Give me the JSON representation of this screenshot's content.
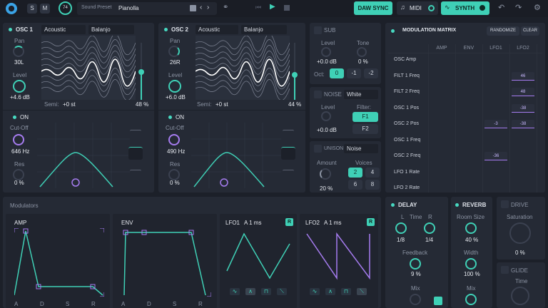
{
  "topbar": {
    "s_label": "S",
    "m_label": "M",
    "volume_value": "74",
    "preset_label": "Sound Preset",
    "preset_name": "Pianolla",
    "daw_sync": "DAW SYNC",
    "midi": "MIDI",
    "synth": "SYNTH"
  },
  "osc1": {
    "title": "OSC 1",
    "type": "Acoustic",
    "instrument": "Balanjo",
    "pan_label": "Pan",
    "pan_value": "30L",
    "level_label": "Level",
    "level_value": "+4.6 dB",
    "semi_label": "Semi:",
    "semi_value": "+0 st",
    "percent": "48 %",
    "filter_on": "ON",
    "cutoff_label": "Cut-Off",
    "cutoff_value": "646 Hz",
    "res_label": "Res",
    "res_value": "0 %"
  },
  "osc2": {
    "title": "OSC 2",
    "type": "Acoustic",
    "instrument": "Balanjo",
    "pan_label": "Pan",
    "pan_value": "26R",
    "level_label": "Level",
    "level_value": "+6.0 dB",
    "semi_label": "Semi:",
    "semi_value": "+0 st",
    "percent": "44 %",
    "filter_on": "ON",
    "cutoff_label": "Cut-Off",
    "cutoff_value": "490 Hz",
    "res_label": "Res",
    "res_value": "0 %"
  },
  "sub": {
    "title": "SUB",
    "level_label": "Level",
    "level_value": "+0.0 dB",
    "tone_label": "Tone",
    "tone_value": "0 %",
    "oct_label": "Oct:",
    "oct_options": [
      "0",
      "-1",
      "-2"
    ]
  },
  "noise": {
    "title": "NOISE",
    "type": "White",
    "level_label": "Level",
    "level_value": "+0.0 dB",
    "filter_label": "Filter:",
    "filter_options": [
      "F1",
      "F2"
    ]
  },
  "unison": {
    "title": "UNISON",
    "type": "Noise",
    "amount_label": "Amount",
    "amount_value": "20 %",
    "voices_label": "Voices",
    "voices_options": [
      "2",
      "4",
      "6",
      "8"
    ]
  },
  "modmatrix": {
    "title": "MODULATION MATRIX",
    "randomize": "RANDOMIZE",
    "clear": "CLEAR",
    "columns": [
      "AMP",
      "ENV",
      "LFO1",
      "LFO2"
    ],
    "rows": [
      "OSC Amp",
      "FILT 1 Freq",
      "FILT 2 Freq",
      "OSC 1 Pos",
      "OSC 2 Pos",
      "OSC 1 Freq",
      "OSC 2 Freq",
      "LFO 1 Rate",
      "LFO 2 Rate"
    ],
    "cells": [
      {
        "row": 1,
        "col": 3,
        "value": "46"
      },
      {
        "row": 2,
        "col": 3,
        "value": "48"
      },
      {
        "row": 3,
        "col": 3,
        "value": "-38"
      },
      {
        "row": 4,
        "col": 2,
        "value": "-3"
      },
      {
        "row": 4,
        "col": 3,
        "value": "-38"
      },
      {
        "row": 6,
        "col": 2,
        "value": "-36"
      }
    ]
  },
  "modulators": {
    "title": "Modulators",
    "amp": "AMP",
    "env": "ENV",
    "lfo1": "LFO1",
    "lfo1_rate": "A 1 ms",
    "lfo2": "LFO2",
    "lfo2_rate": "A 1 ms",
    "r_label": "R",
    "adsr": [
      "A",
      "D",
      "S",
      "R"
    ]
  },
  "delay": {
    "title": "DELAY",
    "l_label": "L",
    "time_label": "Time",
    "r_label": "R",
    "l_value": "1/8",
    "r_value": "1/4",
    "feedback_label": "Feedback",
    "feedback_value": "9 %",
    "mix_label": "Mix"
  },
  "reverb": {
    "title": "REVERB",
    "roomsize_label": "Room Size",
    "roomsize_value": "40 %",
    "width_label": "Width",
    "width_value": "100 %",
    "mix_label": "Mix"
  },
  "drive": {
    "title": "DRIVE",
    "saturation_label": "Saturation",
    "saturation_value": "0 %"
  },
  "glide": {
    "title": "GLIDE",
    "time_label": "Time"
  },
  "colors": {
    "accent": "#3fd0b6",
    "purple": "#a67cf0",
    "bg": "#1c2029",
    "panel": "#252a35"
  }
}
